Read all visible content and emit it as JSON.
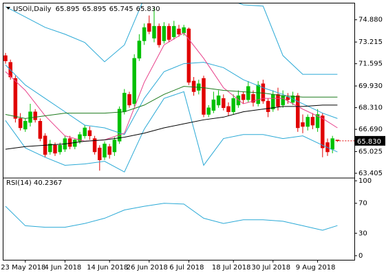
{
  "chart_data": [
    {
      "type": "candlestick",
      "header": "USOil,Daily",
      "ohlc_header": [
        "65.895",
        "65.895",
        "65.745",
        "65.830"
      ],
      "price_tag": "65.830",
      "up_color": "#00c000",
      "down_color": "#e00000",
      "categories": [
        null,
        null,
        null,
        null,
        "23 May 2018",
        null,
        null,
        null,
        null,
        null,
        null,
        null,
        "4 Jun 2018",
        null,
        null,
        null,
        null,
        null,
        null,
        null,
        null,
        "14 Jun 2018",
        null,
        null,
        null,
        null,
        null,
        null,
        null,
        "26 Jun 2018",
        null,
        null,
        null,
        null,
        null,
        null,
        null,
        "6 Jul 2018",
        null,
        null,
        null,
        null,
        null,
        null,
        null,
        null,
        "18 Jul 2018",
        null,
        null,
        null,
        null,
        null,
        null,
        null,
        "30 Jul 2018",
        null,
        null,
        null,
        null,
        null,
        null,
        null,
        null,
        "9 Aug 2018",
        null,
        null,
        null,
        null
      ],
      "open": [
        72.2,
        71.7,
        70.5,
        67.5,
        66.7,
        67.2,
        68.0,
        67.3,
        66.2,
        65.0,
        65.5,
        65.0,
        65.2,
        66.0,
        65.4,
        65.8,
        66.2,
        66.6,
        66.0,
        65.3,
        64.6,
        65.4,
        65.0,
        65.8,
        68.0,
        69.3,
        68.6,
        72.0,
        73.3,
        74.6,
        73.5,
        74.4,
        73.3,
        74.4,
        73.6,
        74.2,
        73.9,
        74.2,
        70.3,
        69.6,
        70.5,
        67.8,
        68.1,
        68.5,
        69.0,
        68.4,
        68.0,
        68.5,
        69.3,
        68.9,
        69.3,
        68.6,
        70.1,
        68.8,
        68.2,
        69.3,
        68.5,
        69.1,
        68.7,
        69.2,
        67.2,
        66.9,
        67.6,
        66.8,
        67.7,
        65.7,
        65.2,
        65.895
      ],
      "high": [
        72.4,
        71.9,
        70.7,
        67.9,
        67.5,
        68.6,
        68.2,
        67.5,
        66.4,
        65.9,
        65.7,
        65.7,
        66.2,
        66.2,
        66.0,
        66.5,
        67.0,
        66.9,
        66.2,
        65.5,
        65.8,
        65.6,
        66.1,
        68.4,
        69.7,
        69.5,
        72.3,
        73.8,
        74.6,
        75.2,
        75.8,
        74.6,
        74.7,
        74.6,
        74.8,
        74.5,
        74.5,
        74.3,
        70.6,
        70.4,
        70.7,
        68.5,
        69.5,
        69.6,
        69.3,
        68.7,
        69.3,
        69.6,
        69.5,
        70.3,
        69.6,
        70.3,
        70.4,
        69.0,
        69.6,
        69.8,
        69.6,
        69.4,
        69.5,
        69.4,
        67.8,
        67.8,
        67.9,
        68.2,
        67.9,
        66.0,
        66.2,
        65.895
      ],
      "low": [
        71.6,
        70.4,
        67.2,
        66.6,
        66.5,
        66.9,
        67.2,
        65.8,
        64.6,
        64.8,
        64.7,
        64.8,
        65.0,
        65.2,
        65.2,
        65.6,
        66.0,
        65.9,
        64.8,
        63.6,
        64.4,
        64.5,
        64.7,
        65.6,
        67.8,
        68.3,
        68.4,
        71.8,
        73.0,
        73.8,
        73.2,
        72.8,
        73.1,
        73.2,
        73.4,
        73.6,
        73.7,
        70.0,
        69.2,
        69.3,
        67.6,
        67.6,
        67.9,
        68.3,
        68.1,
        67.7,
        67.8,
        68.3,
        68.6,
        68.7,
        68.4,
        68.4,
        68.6,
        67.6,
        68.0,
        68.1,
        68.3,
        68.6,
        68.5,
        66.5,
        66.4,
        66.6,
        66.7,
        66.5,
        64.6,
        64.7,
        64.9,
        65.745
      ],
      "close": [
        71.8,
        70.6,
        67.5,
        66.8,
        67.3,
        68.0,
        67.4,
        66.0,
        64.8,
        65.6,
        64.9,
        65.5,
        66.0,
        65.4,
        65.9,
        66.3,
        66.8,
        66.2,
        65.0,
        64.4,
        65.6,
        64.8,
        65.9,
        68.2,
        69.4,
        68.5,
        72.0,
        73.3,
        74.3,
        74.0,
        74.4,
        73.0,
        74.4,
        73.4,
        74.4,
        73.8,
        74.3,
        70.2,
        69.5,
        70.1,
        67.8,
        68.3,
        68.9,
        69.2,
        68.3,
        68.0,
        69.0,
        69.2,
        68.9,
        69.9,
        68.7,
        70.0,
        68.8,
        68.0,
        69.3,
        68.4,
        69.2,
        68.9,
        69.2,
        66.8,
        66.9,
        67.6,
        67.0,
        67.8,
        65.3,
        65.0,
        66.0,
        65.83
      ],
      "overlays": [
        {
          "color": "#2aa9d6",
          "x": [
            0,
            4,
            8,
            12,
            16,
            20,
            24,
            28,
            32,
            36,
            40,
            44,
            48,
            52,
            56,
            60,
            64,
            67
          ],
          "values": [
            75.86,
            75.09,
            74.31,
            73.8,
            73.18,
            71.74,
            73.0,
            76.5,
            77.5,
            77.5,
            77.0,
            76.5,
            76.0,
            75.9,
            72.2,
            70.8,
            70.8,
            70.8
          ]
        },
        {
          "color": "#2aa9d6",
          "x": [
            0,
            4,
            8,
            12,
            16,
            20,
            24,
            28,
            32,
            36,
            40,
            44,
            48,
            52,
            56,
            60,
            64,
            67
          ],
          "values": [
            71.5,
            70.0,
            69.0,
            68.0,
            67.0,
            66.8,
            66.3,
            69.0,
            71.0,
            71.6,
            71.7,
            71.3,
            70.4,
            69.8,
            69.3,
            68.6,
            67.9,
            67.5
          ]
        },
        {
          "color": "#2aa9d6",
          "x": [
            0,
            4,
            8,
            12,
            16,
            20,
            24,
            28,
            32,
            36,
            40,
            44,
            48,
            52,
            56,
            60,
            64,
            67
          ],
          "values": [
            67.35,
            65.3,
            64.6,
            64.0,
            64.1,
            64.3,
            63.5,
            66.7,
            69.0,
            69.5,
            64.0,
            66.0,
            66.3,
            66.3,
            66.0,
            66.2,
            65.5,
            65.0
          ]
        },
        {
          "color": "#e8408a",
          "x": [
            0,
            4,
            8,
            12,
            16,
            20,
            24,
            28,
            32,
            36,
            40,
            44,
            48,
            52,
            56,
            60,
            64,
            67
          ],
          "values": [
            71.0,
            69.6,
            67.7,
            66.2,
            65.8,
            65.9,
            66.4,
            70.2,
            73.0,
            73.9,
            72.0,
            69.8,
            68.6,
            69.0,
            69.0,
            68.2,
            67.5,
            66.8
          ]
        },
        {
          "color": "#1c7a1c",
          "x": [
            0,
            4,
            8,
            12,
            16,
            20,
            24,
            28,
            32,
            36,
            40,
            44,
            48,
            52,
            56,
            60,
            64,
            67
          ],
          "values": [
            67.8,
            67.5,
            67.7,
            67.9,
            67.9,
            67.9,
            68.0,
            68.5,
            69.3,
            69.9,
            69.8,
            69.6,
            69.5,
            69.4,
            69.2,
            69.1,
            69.1,
            69.1
          ]
        },
        {
          "color": "#000000",
          "x": [
            0,
            4,
            8,
            12,
            16,
            20,
            24,
            28,
            32,
            36,
            40,
            44,
            48,
            52,
            56,
            60,
            64,
            67
          ],
          "values": [
            65.2,
            65.4,
            65.5,
            65.6,
            65.8,
            65.9,
            66.1,
            66.4,
            66.8,
            67.1,
            67.4,
            67.6,
            68.0,
            68.2,
            68.4,
            68.4,
            68.5,
            68.5
          ]
        }
      ],
      "ylim": [
        63.1,
        76.1
      ],
      "yticks": [
        {
          "value": 63.405,
          "label": "63.405"
        },
        {
          "value": 65.025,
          "label": "65.025"
        },
        {
          "value": 66.69,
          "label": "66.690"
        },
        {
          "value": 68.31,
          "label": "68.310"
        },
        {
          "value": 69.93,
          "label": "69.930"
        },
        {
          "value": 71.595,
          "label": "71.595"
        },
        {
          "value": 73.215,
          "label": "73.215"
        },
        {
          "value": 74.88,
          "label": "74.880"
        }
      ]
    },
    {
      "type": "line",
      "title": "RSI(14) 40.2367",
      "color": "#2aa9d6",
      "x": [
        0,
        4,
        8,
        12,
        16,
        20,
        24,
        28,
        32,
        36,
        40,
        44,
        48,
        52,
        56,
        60,
        64,
        67
      ],
      "values": [
        66,
        40,
        38,
        38,
        43,
        50,
        61,
        66,
        70,
        69,
        50,
        43,
        48,
        48,
        46,
        40,
        34,
        40.2367
      ],
      "ylim": [
        -5.5,
        102.8
      ],
      "yticks": [
        0,
        30,
        70,
        100
      ]
    }
  ]
}
